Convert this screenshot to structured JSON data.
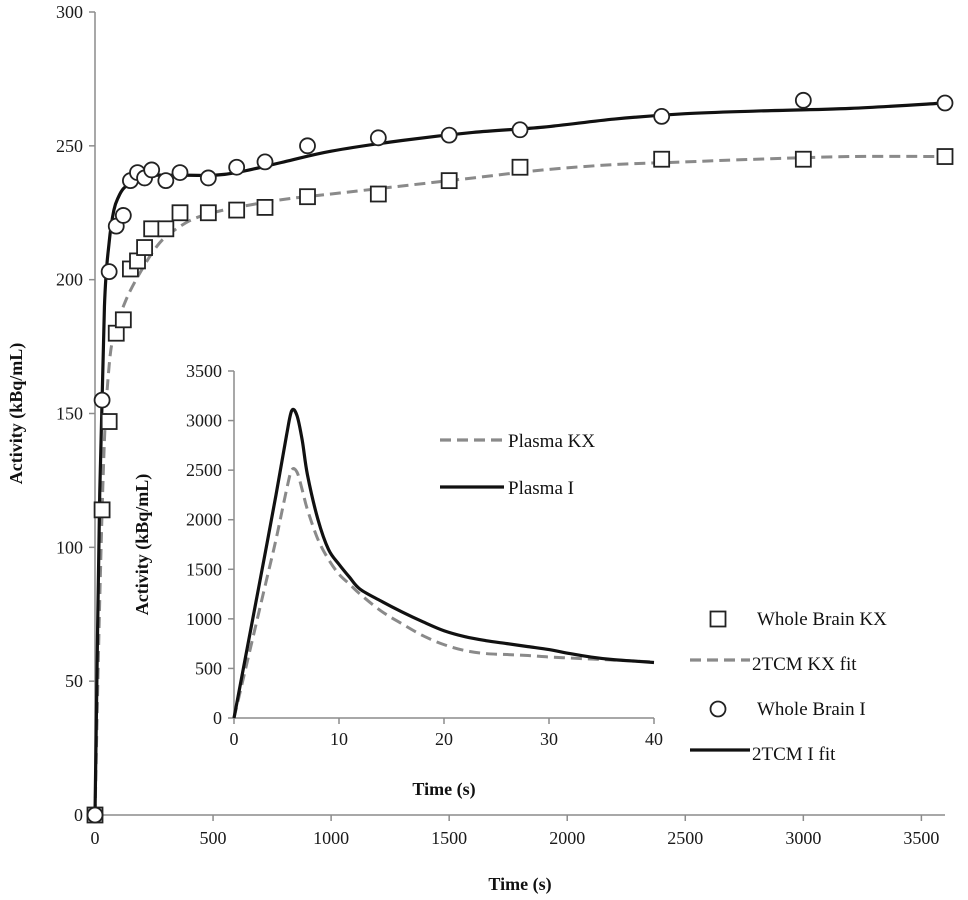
{
  "chart_data": [
    {
      "id": "main",
      "type": "scatter",
      "title": "",
      "xlabel": "Time (s)",
      "ylabel": "Activity (kBq/mL)",
      "xlim": [
        0,
        3600
      ],
      "ylim": [
        0,
        300
      ],
      "xticks": [
        0,
        500,
        1000,
        1500,
        2000,
        2500,
        3000,
        3500
      ],
      "yticks": [
        0,
        50,
        100,
        150,
        200,
        250,
        300
      ],
      "grid": false,
      "legend_position": "bottom-right",
      "series": [
        {
          "name": "Whole Brain KX",
          "kind": "markers",
          "marker": "square",
          "color": "#222222",
          "x": [
            0,
            30,
            60,
            90,
            120,
            150,
            180,
            210,
            240,
            300,
            360,
            480,
            600,
            720,
            900,
            1200,
            1500,
            1800,
            2400,
            3000,
            3600
          ],
          "y": [
            0,
            114,
            147,
            180,
            185,
            204,
            207,
            212,
            219,
            219,
            225,
            225,
            226,
            227,
            231,
            232,
            237,
            242,
            245,
            245,
            246
          ]
        },
        {
          "name": "2TCM KX fit",
          "kind": "line",
          "dash": true,
          "color": "#8a8a8a",
          "x": [
            0,
            20,
            40,
            60,
            80,
            100,
            120,
            150,
            200,
            250,
            300,
            400,
            500,
            600,
            800,
            1000,
            1300,
            1600,
            1900,
            2200,
            2500,
            2800,
            3200,
            3600
          ],
          "y": [
            0,
            80,
            140,
            168,
            180,
            185,
            190,
            196,
            204,
            211,
            216,
            222,
            225,
            227,
            230,
            232,
            235,
            238,
            241,
            243,
            244,
            245,
            246,
            246
          ]
        },
        {
          "name": "Whole Brain I",
          "kind": "markers",
          "marker": "circle",
          "color": "#222222",
          "x": [
            0,
            30,
            60,
            90,
            120,
            150,
            180,
            210,
            240,
            300,
            360,
            480,
            600,
            720,
            900,
            1200,
            1500,
            1800,
            2400,
            3000,
            3600
          ],
          "y": [
            0,
            155,
            203,
            220,
            224,
            237,
            240,
            238,
            241,
            237,
            240,
            238,
            242,
            244,
            250,
            253,
            254,
            256,
            261,
            267,
            266
          ]
        },
        {
          "name": "2TCM I fit",
          "kind": "line",
          "dash": false,
          "color": "#111111",
          "x": [
            0,
            20,
            40,
            60,
            80,
            100,
            120,
            150,
            200,
            250,
            300,
            400,
            500,
            600,
            800,
            1000,
            1300,
            1600,
            1900,
            2200,
            2500,
            2800,
            3200,
            3600
          ],
          "y": [
            0,
            120,
            190,
            214,
            226,
            231,
            234,
            236,
            238,
            239,
            239,
            239,
            239,
            240,
            244,
            248,
            252,
            255,
            257,
            260,
            262,
            263,
            264,
            266
          ]
        }
      ]
    },
    {
      "id": "inset",
      "type": "line",
      "title": "",
      "xlabel": "Time (s)",
      "ylabel": "Activity (kBq/mL)",
      "xlim": [
        0,
        40
      ],
      "ylim": [
        0,
        3500
      ],
      "xticks": [
        0,
        10,
        20,
        30,
        40
      ],
      "yticks": [
        0,
        500,
        1000,
        1500,
        2000,
        2500,
        3000,
        3500
      ],
      "grid": false,
      "legend_position": "top-right",
      "series": [
        {
          "name": "Plasma KX",
          "dash": true,
          "color": "#8a8a8a",
          "x": [
            0,
            1,
            2,
            3,
            4,
            5,
            5.5,
            6,
            6.5,
            7,
            8,
            9,
            10,
            11,
            12,
            14,
            16,
            18,
            20,
            22,
            24,
            26,
            28,
            30,
            32,
            34,
            36,
            38,
            40
          ],
          "y": [
            0,
            450,
            900,
            1350,
            1800,
            2300,
            2500,
            2480,
            2300,
            2100,
            1800,
            1600,
            1450,
            1350,
            1250,
            1080,
            950,
            830,
            740,
            680,
            650,
            640,
            630,
            615,
            605,
            595,
            585,
            575,
            565
          ]
        },
        {
          "name": "Plasma I",
          "dash": false,
          "color": "#111111",
          "x": [
            0,
            1,
            2,
            3,
            4,
            5,
            5.5,
            6,
            6.5,
            7,
            8,
            9,
            10,
            11,
            12,
            14,
            16,
            18,
            20,
            22,
            24,
            26,
            28,
            30,
            32,
            34,
            36,
            38,
            40
          ],
          "y": [
            0,
            560,
            1120,
            1680,
            2250,
            2850,
            3100,
            3050,
            2800,
            2450,
            2000,
            1700,
            1550,
            1420,
            1300,
            1180,
            1070,
            970,
            880,
            820,
            780,
            750,
            720,
            690,
            650,
            615,
            590,
            575,
            560
          ]
        }
      ]
    }
  ]
}
